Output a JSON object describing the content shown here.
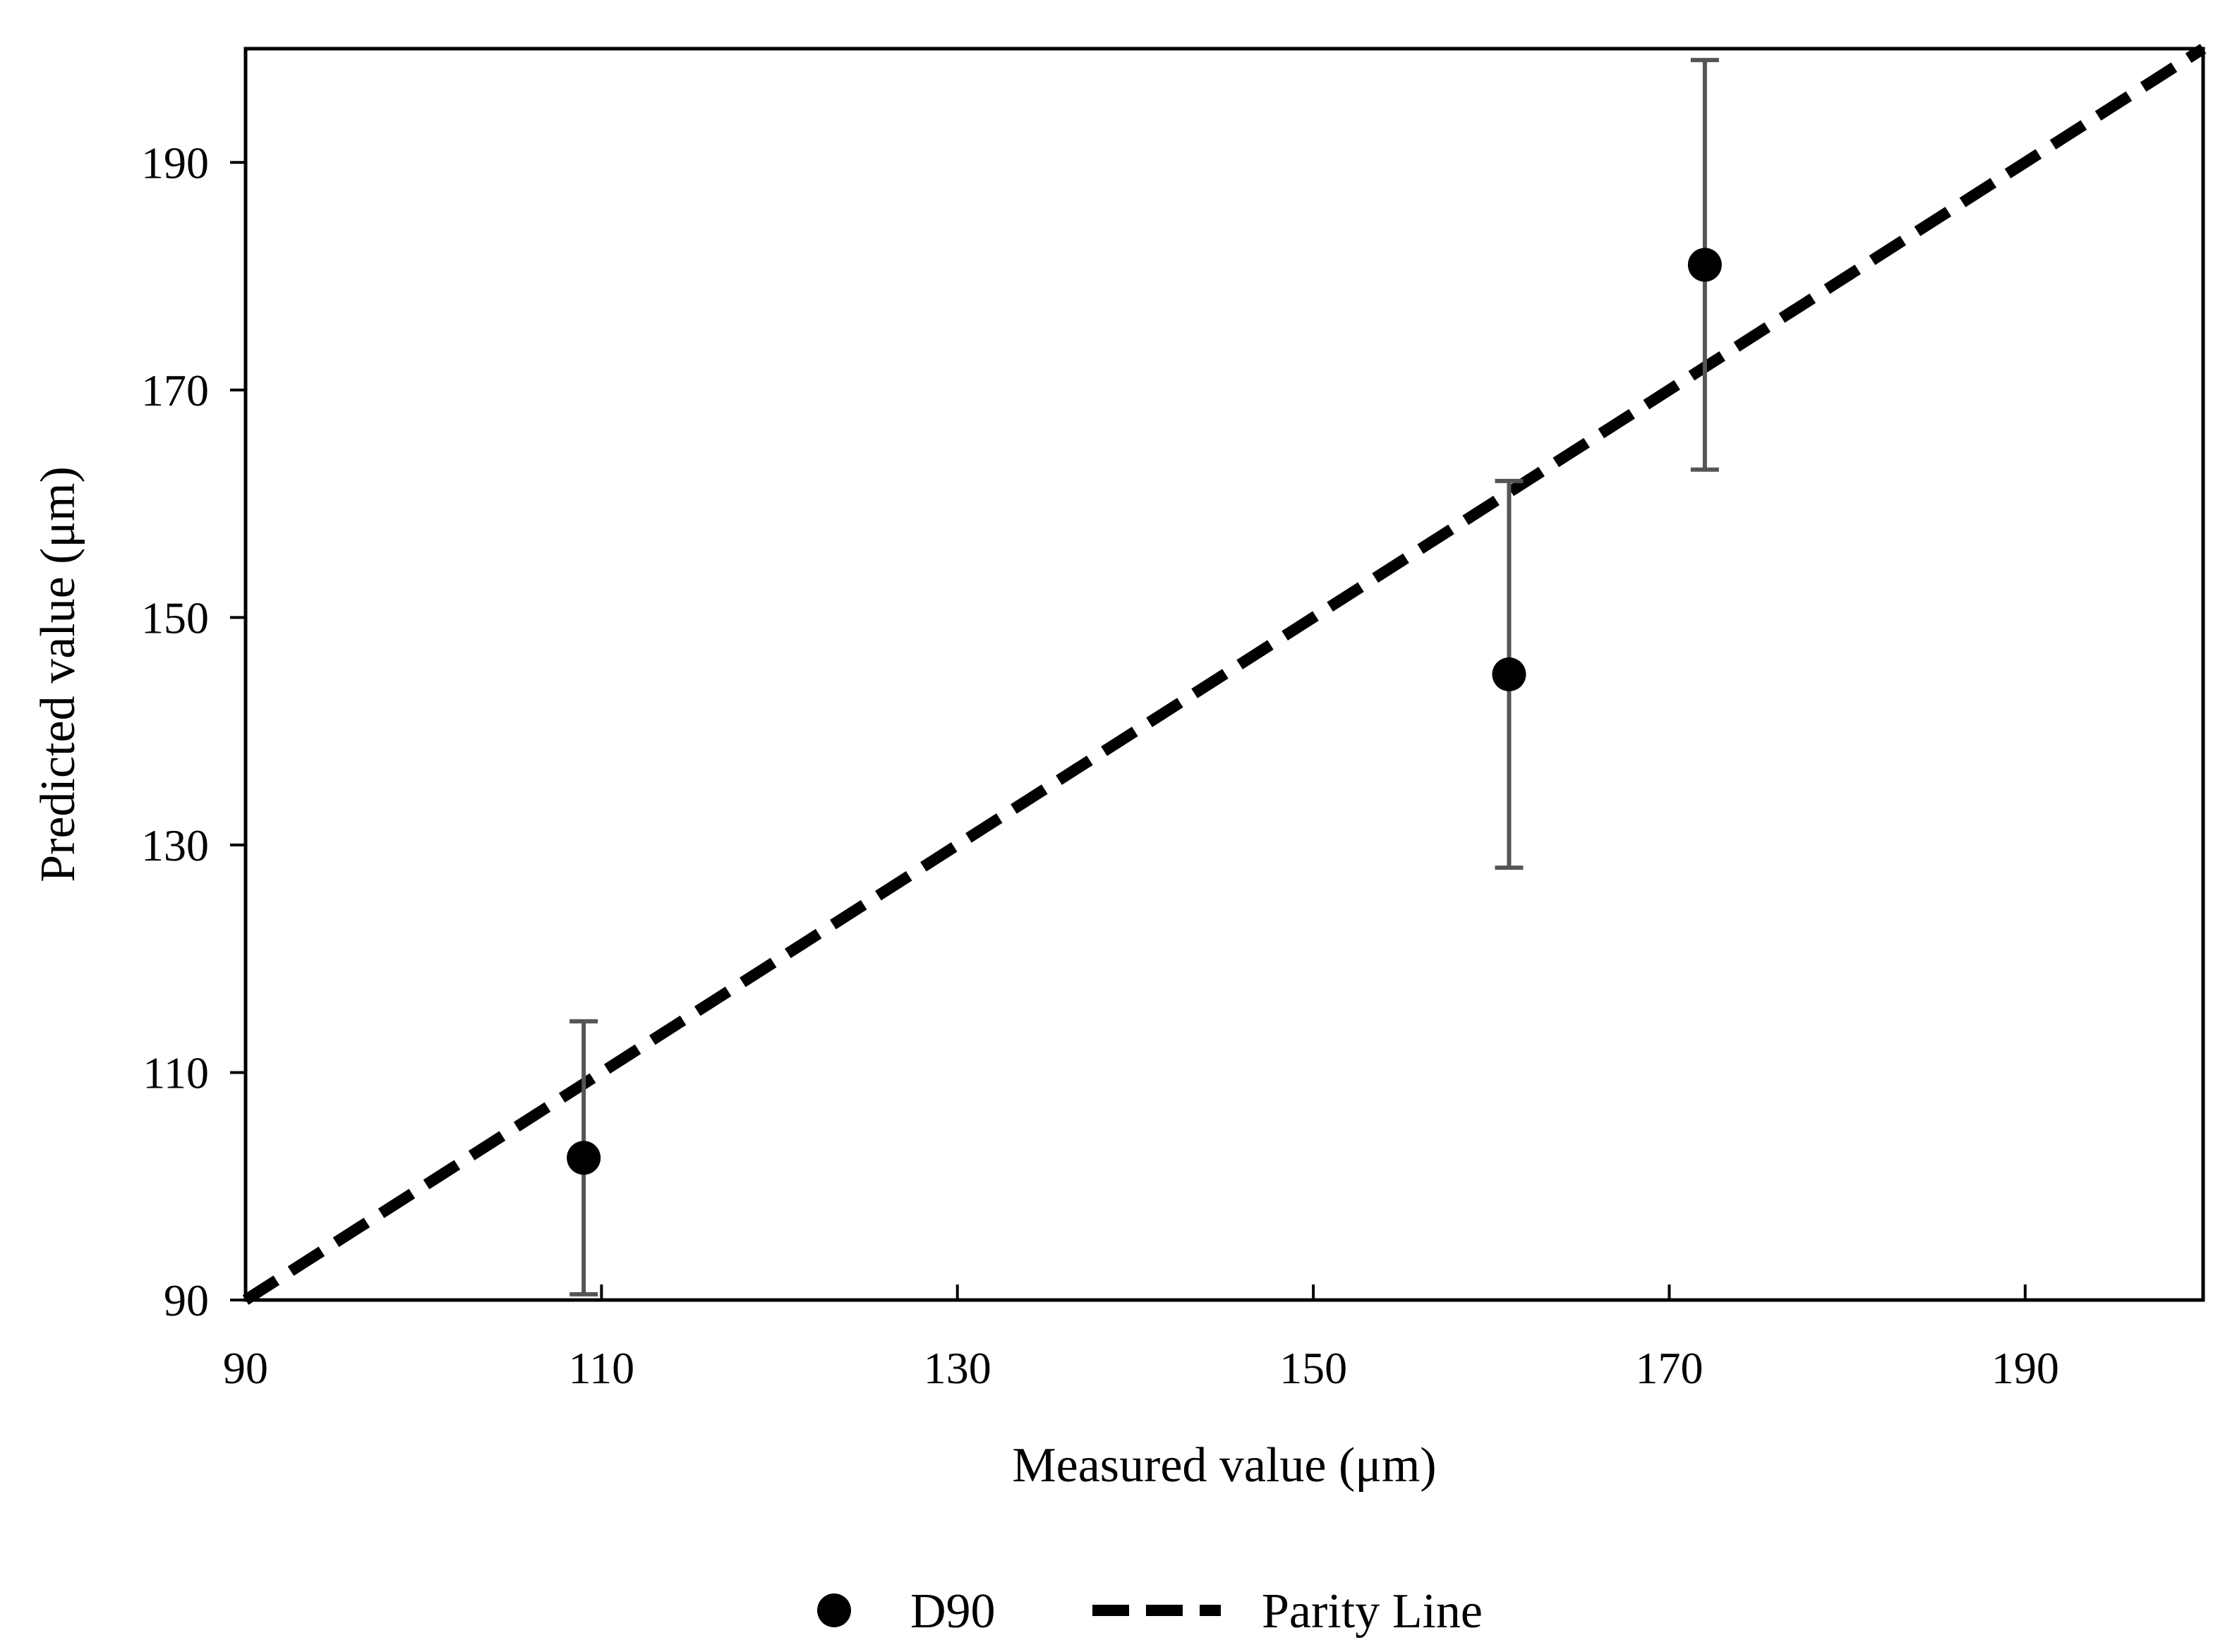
{
  "chart_data": {
    "type": "scatter",
    "xlabel": "Measured value (μm)",
    "ylabel": "Predicted value (μm)",
    "xlim": [
      90,
      200
    ],
    "ylim": [
      90,
      200
    ],
    "xticks": [
      90,
      110,
      130,
      150,
      170,
      190
    ],
    "yticks": [
      90,
      110,
      130,
      150,
      170,
      190
    ],
    "grid": false,
    "legend_position": "bottom",
    "series": [
      {
        "name": "D90",
        "marker": "circle",
        "color": "#000000",
        "error_bar_color": "#555555",
        "points": [
          {
            "x": 109,
            "y": 102.5,
            "err_low": 90.5,
            "err_high": 114.5
          },
          {
            "x": 161,
            "y": 145,
            "err_low": 128,
            "err_high": 162
          },
          {
            "x": 172,
            "y": 181,
            "err_low": 163,
            "err_high": 199
          }
        ]
      },
      {
        "name": "Parity Line",
        "style": "dashed",
        "color": "#000000",
        "x": [
          90,
          200
        ],
        "y": [
          90,
          200
        ]
      }
    ]
  }
}
